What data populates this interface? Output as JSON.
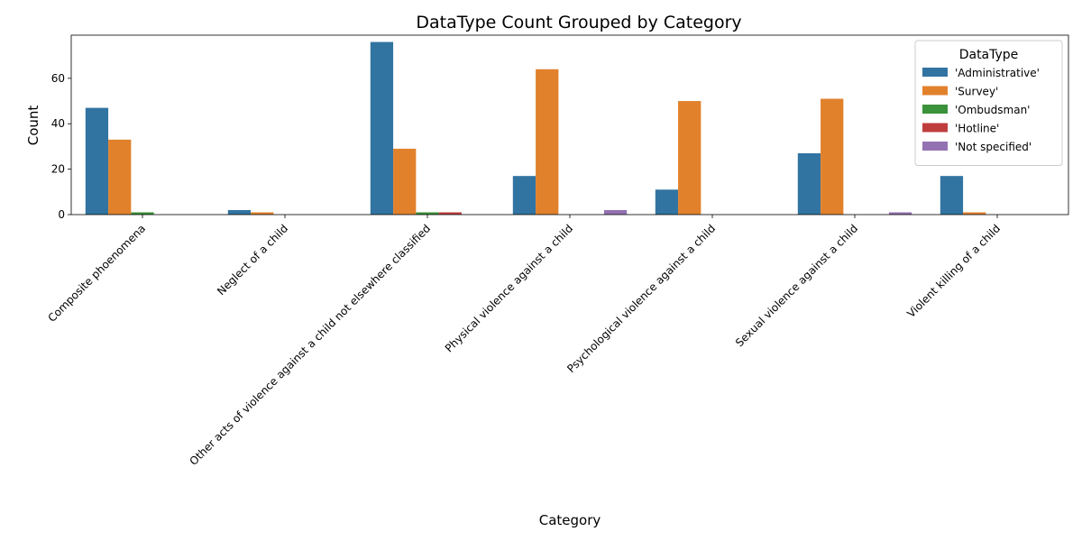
{
  "chart_data": {
    "type": "bar",
    "title": "DataType Count Grouped by Category",
    "xlabel": "Category",
    "ylabel": "Count",
    "ylim": [
      0,
      79
    ],
    "yticks": [
      0,
      20,
      40,
      60
    ],
    "categories": [
      "Composite phoenomena",
      "Neglect of a child",
      "Other acts of violence against a child not elsewhere classified",
      "Physical violence against a child",
      "Psychological violence against a child",
      "Sexual violence against a child",
      "Violent killing of a child"
    ],
    "legend": {
      "title": "DataType",
      "placement": "top-right"
    },
    "series": [
      {
        "name": "'Administrative'",
        "color": "#3274a1",
        "values": [
          47,
          2,
          76,
          17,
          11,
          27,
          17
        ]
      },
      {
        "name": "'Survey'",
        "color": "#e1812c",
        "values": [
          33,
          1,
          29,
          64,
          50,
          51,
          1
        ]
      },
      {
        "name": "'Ombudsman'",
        "color": "#3a923a",
        "values": [
          1,
          0,
          1,
          0,
          0,
          0,
          0
        ]
      },
      {
        "name": "'Hotline'",
        "color": "#c03d3e",
        "values": [
          0,
          0,
          1,
          0,
          0,
          0,
          0
        ]
      },
      {
        "name": "'Not specified'",
        "color": "#9372b2",
        "values": [
          0,
          0,
          0,
          2,
          0,
          1,
          0
        ]
      }
    ],
    "grid": false
  }
}
